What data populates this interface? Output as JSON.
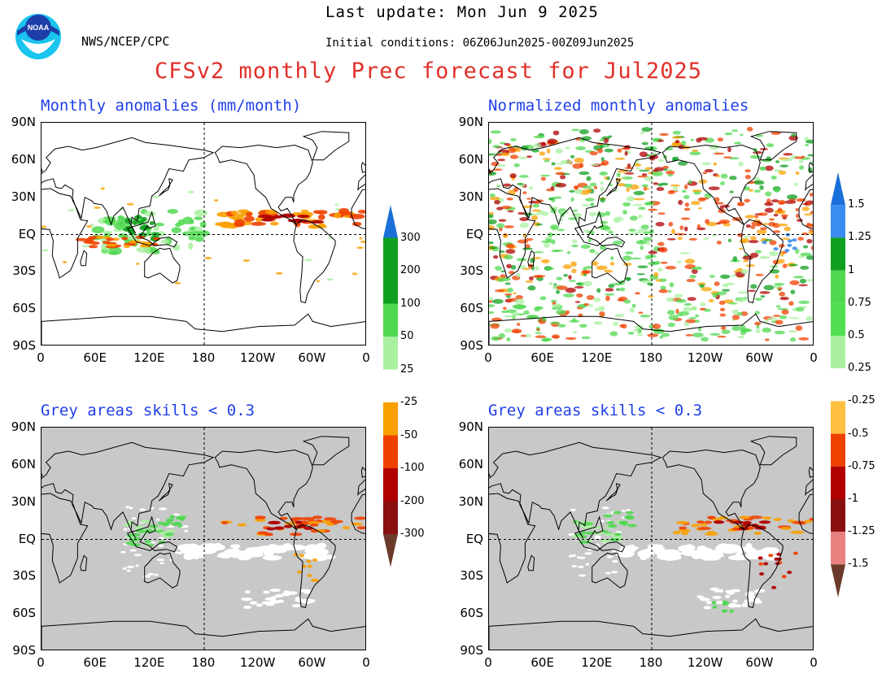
{
  "header": {
    "last_update": "Last update: Mon Jun 9 2025",
    "initial_conditions": "Initial conditions: 06Z06Jun2025-00Z09Jun2025",
    "agency": "NWS/NCEP/CPC",
    "title": "CFSv2 monthly Prec forecast for Jul2025",
    "logo_text": "NOAA"
  },
  "panels": {
    "top_left_title": "Monthly anomalies (mm/month)",
    "top_right_title": "Normalized monthly anomalies",
    "bottom_left_title": "Grey areas skills < 0.3",
    "bottom_right_title": "Grey areas skills < 0.3"
  },
  "axes": {
    "lat_labels": [
      "90N",
      "60N",
      "30N",
      "EQ",
      "30S",
      "60S",
      "90S"
    ],
    "lon_labels": [
      "0",
      "60E",
      "120E",
      "180",
      "120W",
      "60W",
      "0"
    ]
  },
  "colorbar_left": {
    "labels": [
      "300",
      "200",
      "100",
      "50",
      "25",
      "-25",
      "-50",
      "-100",
      "-200",
      "-300"
    ]
  },
  "colorbar_right": {
    "labels": [
      "1.5",
      "1.25",
      "1",
      "0.75",
      "0.5",
      "0.25",
      "-0.25",
      "-0.5",
      "-0.75",
      "-1",
      "-1.25",
      "-1.5"
    ]
  },
  "colors": {
    "title_red": "#e0302a",
    "panel_title_blue": "#1f3fe8",
    "skill_grey": "#c8c8c8",
    "wet_light": "#a8f0a0",
    "wet_mid": "#50d850",
    "wet_dark": "#10a020",
    "dry_light": "#f8a000",
    "dry_mid": "#f04000",
    "dry_dark": "#b00000"
  }
}
